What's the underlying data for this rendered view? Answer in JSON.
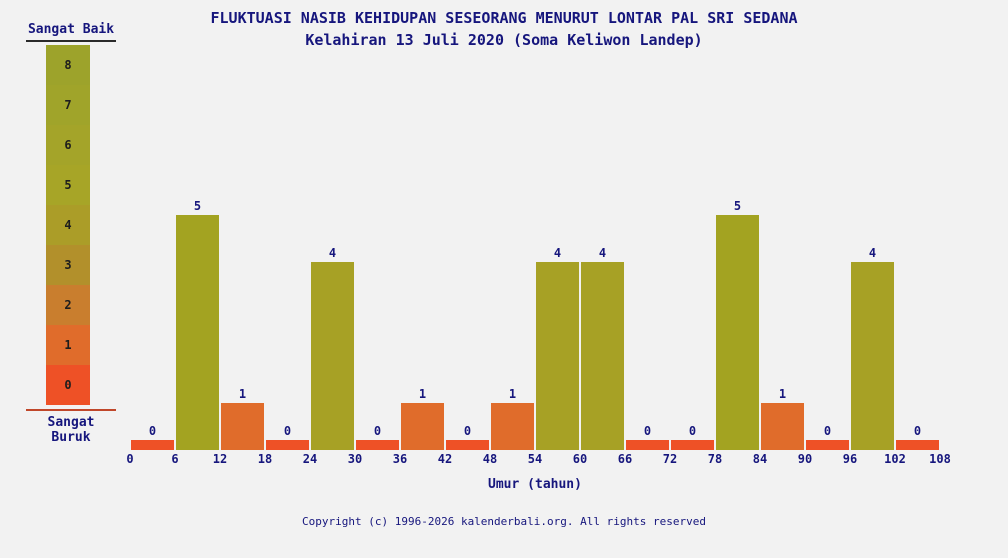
{
  "header": {
    "title": "FLUKTUASI NASIB KEHIDUPAN SESEORANG MENURUT LONTAR PAL SRI SEDANA",
    "subtitle": "Kelahiran 13 Juli 2020 (Soma Keliwon Landep)"
  },
  "legend": {
    "top_label": "Sangat Baik",
    "bottom_label": "Sangat Buruk",
    "levels": [
      {
        "value": 8,
        "color": "#9da32b"
      },
      {
        "value": 7,
        "color": "#a0a42a"
      },
      {
        "value": 6,
        "color": "#a4a429"
      },
      {
        "value": 5,
        "color": "#a7a527"
      },
      {
        "value": 4,
        "color": "#ab9d28"
      },
      {
        "value": 3,
        "color": "#b2902b"
      },
      {
        "value": 2,
        "color": "#c97e2e"
      },
      {
        "value": 1,
        "color": "#e06c2b"
      },
      {
        "value": 0,
        "color": "#ee5126"
      }
    ]
  },
  "chart_data": {
    "type": "bar",
    "x_ticks": [
      0,
      6,
      12,
      18,
      24,
      30,
      36,
      42,
      48,
      54,
      60,
      66,
      72,
      78,
      84,
      90,
      96,
      102,
      108
    ],
    "age_ranges": [
      "0-6",
      "6-12",
      "12-18",
      "18-24",
      "24-30",
      "30-36",
      "36-42",
      "42-48",
      "48-54",
      "54-60",
      "60-66",
      "66-72",
      "72-78",
      "78-84",
      "84-90",
      "90-96",
      "96-102",
      "102-108"
    ],
    "values": [
      0,
      5,
      1,
      0,
      4,
      0,
      1,
      0,
      1,
      4,
      4,
      0,
      0,
      5,
      1,
      0,
      4,
      0
    ],
    "xlabel": "Umur (tahun)",
    "ylim": [
      0,
      8
    ],
    "grid": false,
    "legend_position": "left",
    "value_colors": {
      "0": "#ee5126",
      "1": "#e06c2b",
      "4": "#a7a125",
      "5": "#a3a321"
    },
    "colors": {
      "background": "#f2f2f2",
      "text": "#16167d"
    }
  },
  "footer": {
    "copyright": "Copyright (c) 1996-2026 kalenderbali.org. All rights reserved"
  }
}
